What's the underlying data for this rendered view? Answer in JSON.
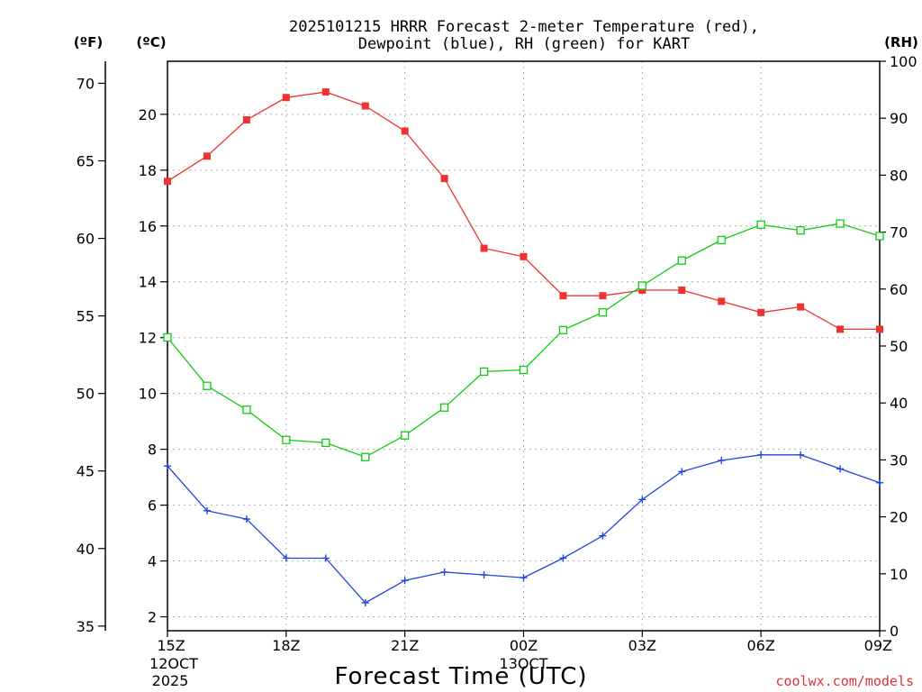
{
  "chart_data": {
    "type": "line",
    "title_line1": "2025101215 HRRR Forecast 2-meter Temperature (red),",
    "title_line2": "Dewpoint (blue), RH (green) for KART",
    "xlabel": "Forecast Time (UTC)",
    "unit_f": "(ºF)",
    "unit_c": "(ºC)",
    "unit_rh": "(RH)",
    "watermark": "coolwx.com/models",
    "x_hours": [
      0,
      1,
      2,
      3,
      4,
      5,
      6,
      7,
      8,
      9,
      10,
      11,
      12,
      13,
      14,
      15,
      16,
      17,
      18
    ],
    "x_ticks": [
      {
        "h": 0,
        "label": "15Z",
        "sub1": "12OCT",
        "sub2": "2025"
      },
      {
        "h": 3,
        "label": "18Z",
        "sub1": "",
        "sub2": ""
      },
      {
        "h": 6,
        "label": "21Z",
        "sub1": "",
        "sub2": ""
      },
      {
        "h": 9,
        "label": "00Z",
        "sub1": "13OCT",
        "sub2": ""
      },
      {
        "h": 12,
        "label": "03Z",
        "sub1": "",
        "sub2": ""
      },
      {
        "h": 15,
        "label": "06Z",
        "sub1": "",
        "sub2": ""
      },
      {
        "h": 18,
        "label": "09Z",
        "sub1": "",
        "sub2": ""
      }
    ],
    "c_range": [
      1.5,
      21.9
    ],
    "c_ticks": [
      "2",
      "4",
      "6",
      "8",
      "10",
      "12",
      "14",
      "16",
      "18",
      "20"
    ],
    "f_ticks": [
      "35",
      "40",
      "45",
      "50",
      "55",
      "60",
      "65",
      "70"
    ],
    "rh_range": [
      0,
      100
    ],
    "rh_ticks": [
      "0",
      "10",
      "20",
      "30",
      "40",
      "50",
      "60",
      "70",
      "80",
      "90",
      "100"
    ],
    "series": [
      {
        "name": "Temperature",
        "color": "#ee3333",
        "marker": "filled-square",
        "values": [
          17.6,
          18.5,
          19.8,
          20.6,
          20.8,
          20.3,
          19.4,
          17.7,
          15.2,
          14.9,
          13.5,
          13.5,
          13.7,
          13.7,
          13.3,
          12.9,
          13.1,
          12.3,
          12.3
        ]
      },
      {
        "name": "Dewpoint",
        "color": "#2244dd",
        "marker": "plus",
        "values": [
          7.4,
          5.8,
          5.5,
          4.1,
          4.1,
          2.5,
          3.3,
          3.6,
          3.5,
          3.4,
          4.1,
          4.9,
          6.2,
          7.2,
          7.6,
          7.8,
          7.8,
          7.3,
          6.8
        ]
      },
      {
        "name": "RH",
        "color": "#11cc11",
        "marker": "open-square",
        "values": [
          51.5,
          43,
          38.8,
          33.5,
          33,
          30.5,
          34.3,
          39.2,
          45.5,
          45.8,
          52.8,
          55.9,
          60.6,
          65,
          68.6,
          71.3,
          70.3,
          71.5,
          69.3
        ]
      }
    ]
  }
}
